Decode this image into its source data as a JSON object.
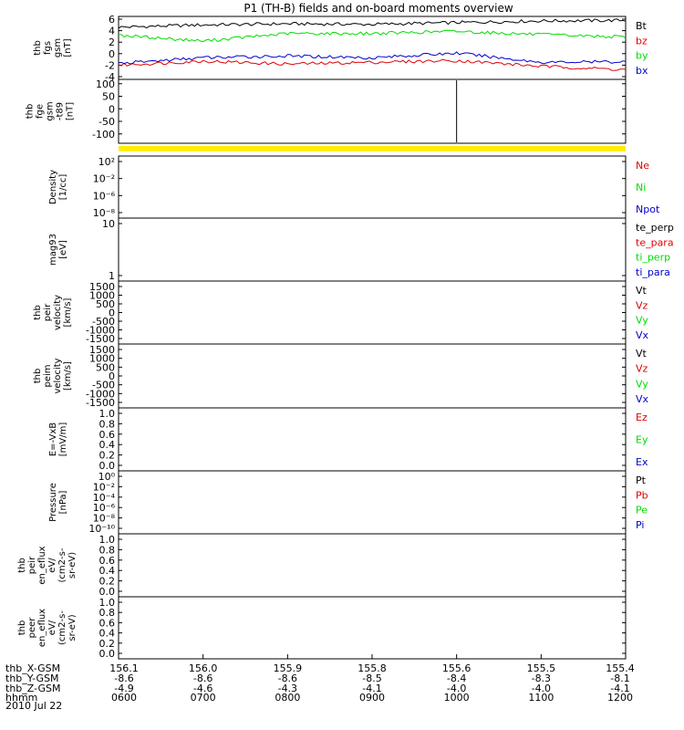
{
  "title": "P1 (TH-B) fields and on-board moments overview",
  "date": "2010 Jul 22",
  "colors": {
    "black": "#000000",
    "red": "#e00000",
    "green": "#00dd00",
    "blue": "#0000cc",
    "yellow": "#ffee00"
  },
  "x_axis": {
    "rows": [
      {
        "label": "thb_X-GSM",
        "values": [
          "156.1",
          "156.0",
          "155.9",
          "155.8",
          "155.6",
          "155.5",
          "155.4"
        ]
      },
      {
        "label": "thb_Y-GSM",
        "values": [
          "-8.6",
          "-8.6",
          "-8.6",
          "-8.5",
          "-8.4",
          "-8.3",
          "-8.1"
        ]
      },
      {
        "label": "thb_Z-GSM",
        "values": [
          "-4.9",
          "-4.6",
          "-4.3",
          "-4.1",
          "-4.0",
          "-4.0",
          "-4.1"
        ]
      },
      {
        "label": "hhmm",
        "values": [
          "0600",
          "0700",
          "0800",
          "0900",
          "1000",
          "1100",
          "1200"
        ]
      }
    ]
  },
  "chart_data": [
    {
      "type": "line",
      "ylabel": "thb\nfgs\ngsm\n[nT]",
      "ylim": [
        -4,
        6
      ],
      "yticks": [
        "6",
        "4",
        "2",
        "0",
        "-2",
        "-4"
      ],
      "x": [
        "0600",
        "0700",
        "0800",
        "0900",
        "1000",
        "1100",
        "1200"
      ],
      "series": [
        {
          "name": "Bt",
          "color": "black",
          "values": [
            4.6,
            5.0,
            5.2,
            5.1,
            5.4,
            5.7,
            5.8
          ]
        },
        {
          "name": "bz",
          "color": "red",
          "values": [
            -2.0,
            -1.3,
            -1.8,
            -1.5,
            -1.2,
            -2.2,
            -2.8
          ]
        },
        {
          "name": "by",
          "color": "green",
          "values": [
            3.2,
            2.2,
            3.5,
            3.5,
            3.9,
            3.3,
            2.9
          ]
        },
        {
          "name": "bx",
          "color": "blue",
          "values": [
            -1.7,
            -0.7,
            -0.4,
            -0.7,
            0.1,
            -1.5,
            -1.4
          ]
        }
      ]
    },
    {
      "type": "line",
      "ylabel": "thb\nfge\ngsm\n-t89\n[nT]",
      "ylim": [
        -130,
        110
      ],
      "yticks": [
        "100",
        "50",
        "0",
        "-50",
        "-100"
      ],
      "annotations": [
        {
          "kind": "spike",
          "x": "1000"
        }
      ],
      "series": []
    },
    {
      "type": "line",
      "ylabel": "Density\n[1/cc]",
      "scale": "log",
      "yticks": [
        "10²",
        "10⁻²",
        "10⁻⁶",
        "10⁻⁸"
      ],
      "series": [
        {
          "name": "Ne",
          "color": "red"
        },
        {
          "name": "Ni",
          "color": "green"
        },
        {
          "name": "Npot",
          "color": "blue"
        }
      ]
    },
    {
      "type": "line",
      "ylabel": "mag93\n[eV]",
      "scale": "log",
      "yticks": [
        "10",
        "1"
      ],
      "series": [
        {
          "name": "te_perp",
          "color": "black"
        },
        {
          "name": "te_para",
          "color": "red"
        },
        {
          "name": "ti_perp",
          "color": "green"
        },
        {
          "name": "ti_para",
          "color": "blue"
        }
      ]
    },
    {
      "type": "line",
      "ylabel": "thb\npeir\nvelocity\n[km/s]",
      "yticks": [
        "1500",
        "1000",
        "500",
        "0",
        "-500",
        "-1000",
        "-1500"
      ],
      "series": [
        {
          "name": "Vt",
          "color": "black"
        },
        {
          "name": "Vz",
          "color": "red"
        },
        {
          "name": "Vy",
          "color": "green"
        },
        {
          "name": "Vx",
          "color": "blue"
        }
      ]
    },
    {
      "type": "line",
      "ylabel": "thb\npeim\nvelocity\n[km/s]",
      "yticks": [
        "1500",
        "1000",
        "500",
        "0",
        "-500",
        "-1000",
        "-1500"
      ],
      "series": [
        {
          "name": "Vt",
          "color": "black"
        },
        {
          "name": "Vz",
          "color": "red"
        },
        {
          "name": "Vy",
          "color": "green"
        },
        {
          "name": "Vx",
          "color": "blue"
        }
      ]
    },
    {
      "type": "line",
      "ylabel": "E=-VxB\n[mV/m]",
      "yticks": [
        "1.0",
        "0.8",
        "0.6",
        "0.4",
        "0.2",
        "0.0"
      ],
      "series": [
        {
          "name": "Ez",
          "color": "red"
        },
        {
          "name": "Ey",
          "color": "green"
        },
        {
          "name": "Ex",
          "color": "blue"
        }
      ]
    },
    {
      "type": "line",
      "ylabel": "Pressure\n[nPa]",
      "scale": "log",
      "yticks": [
        "10⁰",
        "10⁻²",
        "10⁻⁴",
        "10⁻⁶",
        "10⁻⁸",
        "10⁻¹⁰"
      ],
      "series": [
        {
          "name": "Pt",
          "color": "black"
        },
        {
          "name": "Pb",
          "color": "red"
        },
        {
          "name": "Pe",
          "color": "green"
        },
        {
          "name": "Pi",
          "color": "blue"
        }
      ]
    },
    {
      "type": "line",
      "ylabel": "thb\npeir\nen_eflux\neV/\n(cm2-s-\nsr-eV)",
      "yticks": [
        "1.0",
        "0.8",
        "0.6",
        "0.4",
        "0.2",
        "0.0"
      ],
      "series": []
    },
    {
      "type": "line",
      "ylabel": "thb\npeer\nen_eflux\neV/\n(cm2-s-\nsr-eV)",
      "yticks": [
        "1.0",
        "0.8",
        "0.6",
        "0.4",
        "0.2",
        "0.0"
      ],
      "series": []
    }
  ]
}
